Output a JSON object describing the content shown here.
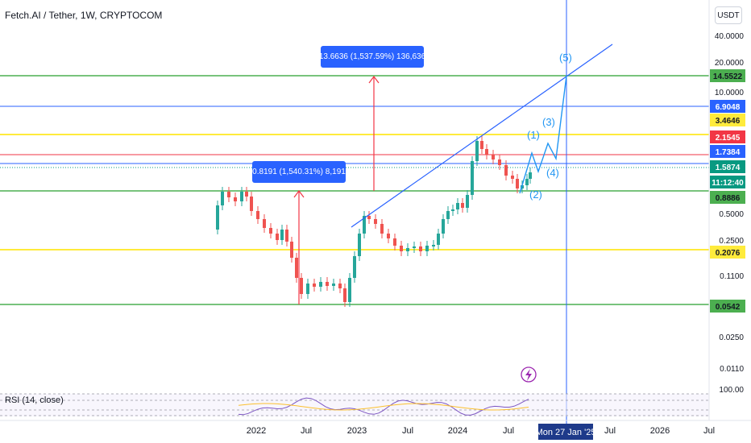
{
  "header": {
    "symbol_title": "Fetch.AI / Tether, 1W, CRYPTOCOM",
    "currency": "USDT"
  },
  "colors": {
    "up": "#26a69a",
    "down": "#ef5350",
    "green_line": "#4caf50",
    "yellow_line": "#ffeb3b",
    "red_line": "#f23645",
    "blue_line": "#2962ff",
    "accent": "#2962ff",
    "rsi": "#7e57c2"
  },
  "price_scale": {
    "ticks": [
      "40.0000",
      "20.0000",
      "10.0000",
      "0.5000",
      "0.2500",
      "0.1100",
      "0.0250",
      "0.0110"
    ]
  },
  "level_labels": [
    {
      "text": "14.5522",
      "bg": "#4caf50",
      "fg": "#131722"
    },
    {
      "text": "6.9048",
      "bg": "#2962ff",
      "fg": "#ffffff"
    },
    {
      "text": "3.4646",
      "bg": "#ffeb3b",
      "fg": "#131722"
    },
    {
      "text": "2.1545",
      "bg": "#f23645",
      "fg": "#ffffff"
    },
    {
      "text": "1.7384",
      "bg": "#2962ff",
      "fg": "#ffffff"
    },
    {
      "text": "1.5874",
      "bg": "#089981",
      "fg": "#ffffff"
    },
    {
      "text": "11:12:40",
      "bg": "#089981",
      "fg": "#ffffff"
    },
    {
      "text": "0.8886",
      "bg": "#4caf50",
      "fg": "#131722"
    },
    {
      "text": "0.2076",
      "bg": "#ffeb3b",
      "fg": "#131722"
    },
    {
      "text": "0.0542",
      "bg": "#4caf50",
      "fg": "#131722"
    }
  ],
  "annotations": {
    "measure_top": "13.6636 (1,537.59%) 136,636",
    "measure_mid": "0.8191 (1,540.31%) 8,191"
  },
  "wave_labels": [
    "(1)",
    "(2)",
    "(3)",
    "(4)",
    "(5)"
  ],
  "rsi": {
    "label": "RSI (14, close)",
    "tick": "100.00"
  },
  "time_axis": {
    "labels": [
      "2022",
      "Jul",
      "2023",
      "Jul",
      "2024",
      "Jul",
      "Jul",
      "2026",
      "Jul"
    ],
    "cursor_label": "Mon 27 Jan '25"
  },
  "lightning_icon": "lightning-icon"
}
